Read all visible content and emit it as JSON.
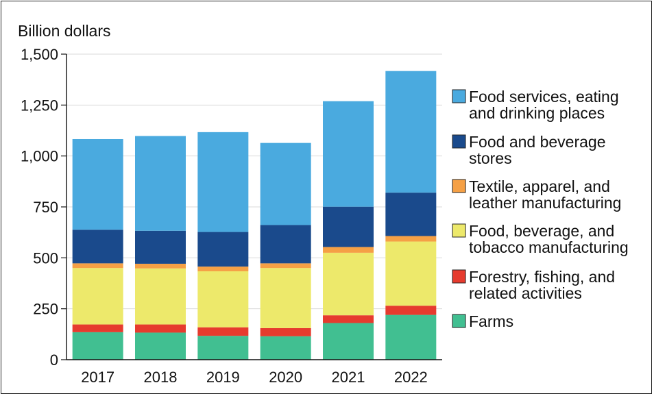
{
  "chart_data": {
    "type": "bar",
    "stacked": true,
    "title": "",
    "xlabel": "",
    "ylabel": "Billion dollars",
    "ylim": [
      0,
      1500
    ],
    "yticks": [
      0,
      250,
      500,
      750,
      1000,
      1250,
      1500
    ],
    "ytick_labels": [
      "0",
      "250",
      "500",
      "750",
      "1,000",
      "1,250",
      "1,500"
    ],
    "grid": true,
    "legend_position": "right",
    "categories": [
      "2017",
      "2018",
      "2019",
      "2020",
      "2021",
      "2022"
    ],
    "series": [
      {
        "name": "Farms",
        "color": "#41bf91",
        "values": [
          135,
          133,
          117,
          115,
          180,
          220
        ]
      },
      {
        "name": "Forestry, fishing, and related activities",
        "color": "#e63b2e",
        "values": [
          38,
          40,
          42,
          40,
          38,
          45
        ]
      },
      {
        "name": "Food, beverage, and tobacco manufacturing",
        "color": "#ede96b",
        "values": [
          277,
          275,
          275,
          295,
          307,
          315
        ]
      },
      {
        "name": "Textile, apparel, and leather manufacturing",
        "color": "#f5a045",
        "values": [
          23,
          23,
          23,
          23,
          28,
          27
        ]
      },
      {
        "name": "Food and beverage stores",
        "color": "#1a4a8c",
        "values": [
          165,
          162,
          170,
          188,
          198,
          213
        ]
      },
      {
        "name": "Food services, eating and drinking places",
        "color": "#4aaadf",
        "values": [
          445,
          465,
          490,
          403,
          518,
          597
        ]
      }
    ],
    "legend_order": [
      {
        "lines": [
          "Food services, eating",
          "and drinking places"
        ],
        "series_index": 5
      },
      {
        "lines": [
          "Food and beverage",
          "stores"
        ],
        "series_index": 4
      },
      {
        "lines": [
          "Textile, apparel, and",
          "leather manufacturing"
        ],
        "series_index": 3
      },
      {
        "lines": [
          "Food, beverage, and",
          "tobacco manufacturing"
        ],
        "series_index": 2
      },
      {
        "lines": [
          "Forestry, fishing, and",
          "related activities"
        ],
        "series_index": 1
      },
      {
        "lines": [
          "Farms"
        ],
        "series_index": 0
      }
    ]
  }
}
